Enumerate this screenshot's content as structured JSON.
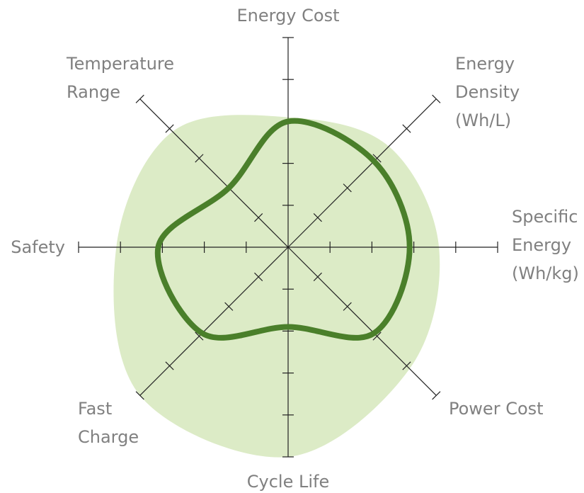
{
  "chart_data": {
    "type": "radar",
    "categories": [
      "Energy Cost",
      "Energy Density (Wh/L)",
      "Specific Energy (Wh/kg)",
      "Power Cost",
      "Cycle Life",
      "Fast Charge",
      "Safety",
      "Temperature Range"
    ],
    "rlim": [
      0,
      5
    ],
    "rticks": [
      1,
      2,
      3,
      4
    ],
    "series": [
      {
        "color": "#dcebc6",
        "fill": true,
        "values": [
          3.1,
          3.4,
          3.6,
          4.1,
          5.0,
          5.0,
          4.1,
          3.9
        ]
      },
      {
        "color": "#4a7f2a",
        "fill": false,
        "values": [
          3.0,
          2.9,
          2.9,
          2.9,
          1.9,
          2.9,
          3.1,
          2.0
        ]
      }
    ]
  }
}
